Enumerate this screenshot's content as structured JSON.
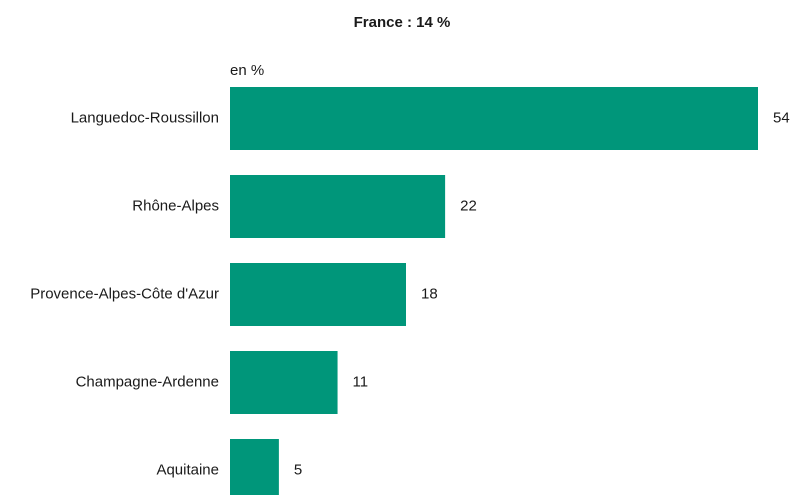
{
  "chart_data": {
    "type": "bar",
    "orientation": "horizontal",
    "title": "France : 14 %",
    "unit_label": "en %",
    "categories": [
      "Languedoc-Roussillon",
      "Rhône-Alpes",
      "Provence-Alpes-Côte d'Azur",
      "Champagne-Ardenne",
      "Aquitaine"
    ],
    "values": [
      54,
      22,
      18,
      11,
      5
    ],
    "value_labels": [
      "54",
      "22",
      "18",
      "11",
      "5"
    ],
    "xlim": [
      0,
      54
    ],
    "grid": false,
    "legend": "none",
    "colors": {
      "bar": "#00967a",
      "text": "#1a1a1a"
    }
  }
}
